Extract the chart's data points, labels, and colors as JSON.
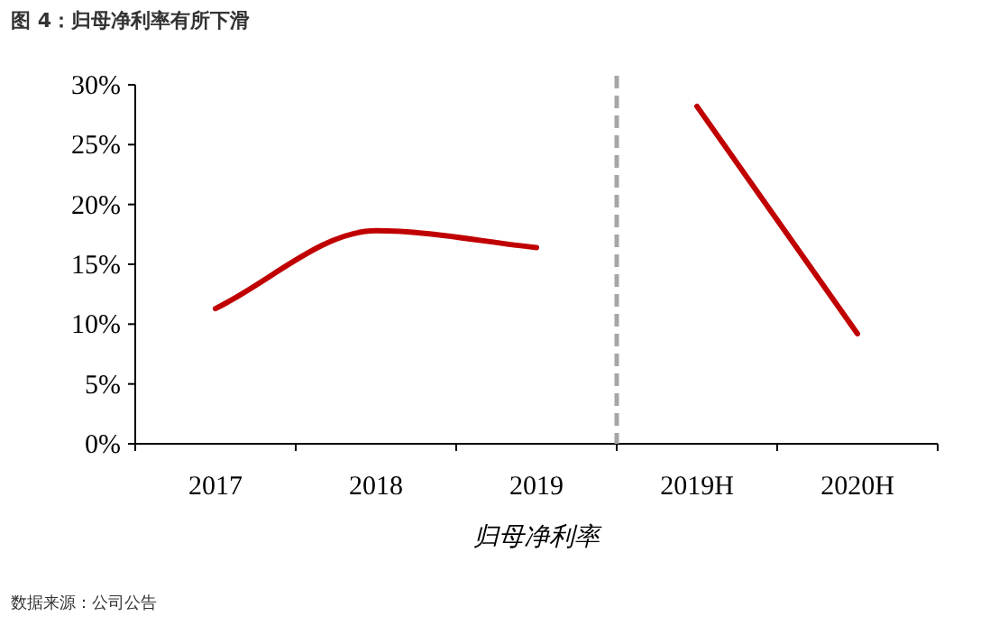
{
  "chart_data": {
    "type": "line",
    "title": "图 4：归母净利率有所下滑",
    "xlabel": "归母净利率",
    "categories": [
      "2017",
      "2018",
      "2019",
      "2019H",
      "2020H"
    ],
    "series": [
      {
        "color": "#c00000",
        "values": [
          11.3,
          17.8,
          16.4,
          null,
          null
        ]
      },
      {
        "color": "#c00000",
        "values": [
          null,
          null,
          null,
          28.2,
          9.2
        ]
      }
    ],
    "ylim": [
      0,
      30
    ],
    "yticks": [
      {
        "value": 0,
        "label": "0%"
      },
      {
        "value": 5,
        "label": "5%"
      },
      {
        "value": 10,
        "label": "10%"
      },
      {
        "value": 15,
        "label": "15%"
      },
      {
        "value": 20,
        "label": "20%"
      },
      {
        "value": 25,
        "label": "25%"
      },
      {
        "value": 30,
        "label": "30%"
      }
    ],
    "marker": "none",
    "line_style": "solid",
    "annotations": [
      "数据来源：公司公告"
    ]
  }
}
